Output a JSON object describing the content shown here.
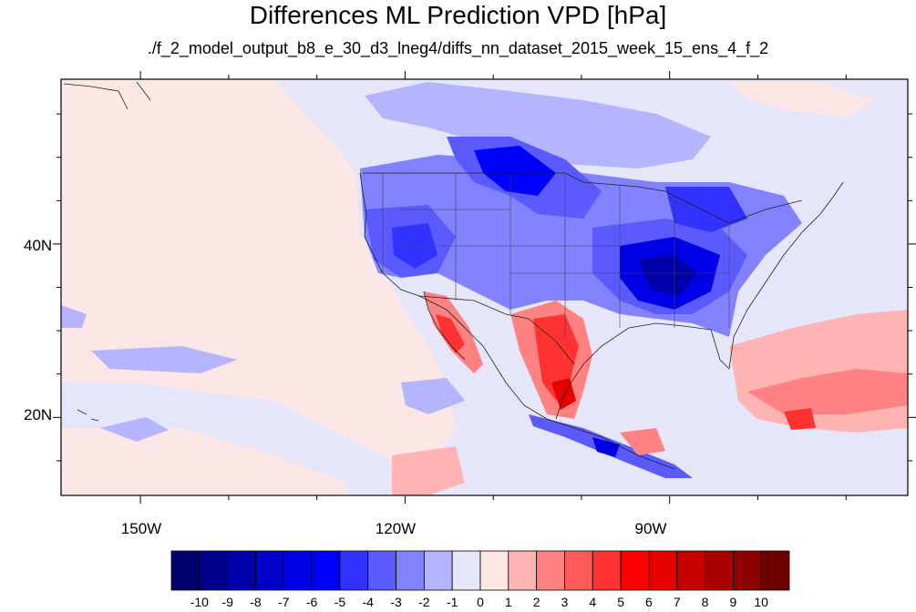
{
  "title": "Differences ML Prediction VPD [hPa]",
  "subtitle": "./f_2_model_output_b8_e_30_d3_lneg4/diffs_nn_dataset_2015_week_15_ens_4_f_2",
  "map": {
    "lon_range": [
      -159,
      -63
    ],
    "lat_range": [
      11,
      59
    ],
    "lon_ticks": [
      "150W",
      "120W",
      "90W"
    ],
    "lat_ticks": [
      "40N",
      "20N"
    ],
    "projection": "cylindrical equidistant"
  },
  "colorbar": {
    "labels": [
      "-10",
      "-9",
      "-8",
      "-7",
      "-6",
      "-5",
      "-4",
      "-3",
      "-2",
      "-1",
      "0",
      "1",
      "2",
      "3",
      "4",
      "5",
      "6",
      "7",
      "8",
      "9",
      "10"
    ],
    "colors": [
      "#00006e",
      "#00008c",
      "#0000a8",
      "#0000c8",
      "#0000e6",
      "#0000ff",
      "#3232ff",
      "#5a5aff",
      "#8282ff",
      "#b4b4ff",
      "#e6e6fa",
      "#fde6e6",
      "#ffb4b4",
      "#ff8282",
      "#ff5a5a",
      "#ff3232",
      "#ff0000",
      "#e60000",
      "#c80000",
      "#a80000",
      "#8c0000",
      "#6e0000"
    ]
  }
}
